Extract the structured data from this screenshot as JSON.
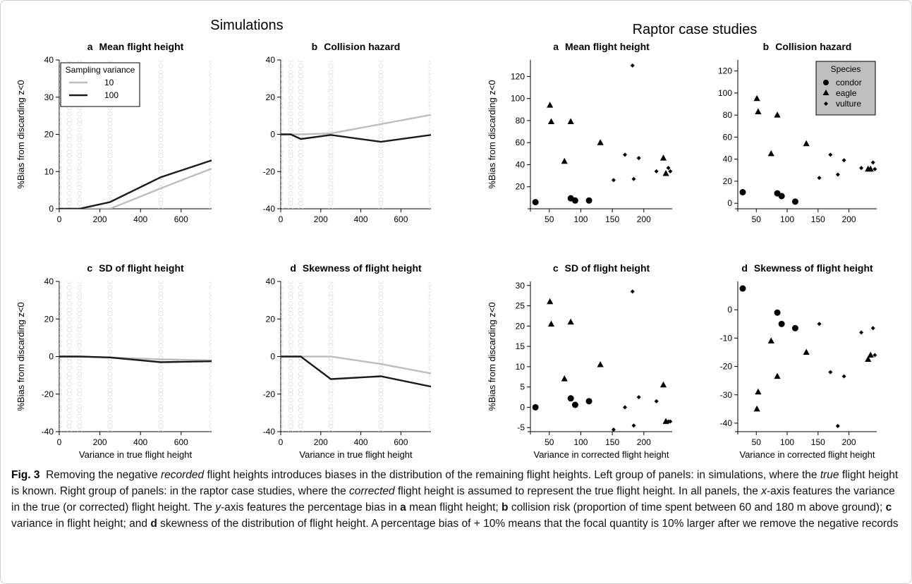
{
  "figure": {
    "group_titles": {
      "left": "Simulations",
      "right": "Raptor case studies"
    },
    "caption": {
      "label": "Fig. 3",
      "p1": "Removing the negative ",
      "p1_em": "recorded",
      "p2": " flight heights introduces biases in the distribution of the remaining flight heights. Left group of panels: in simulations, where the ",
      "p2_em": "true",
      "p3": " flight height is known. Right group of panels: in the raptor case studies, where the ",
      "p3_em": "corrected",
      "p4": " flight height is assumed to represent the true flight height. In all panels, the ",
      "p4_em": "x",
      "p5": "-axis features the variance in the true (or corrected) flight height. The ",
      "p5_em": "y",
      "p6": "-axis features the percentage bias in ",
      "b_a": "a",
      "p7": " mean flight height; ",
      "b_b": "b",
      "p8": " collision risk (proportion of time spent between 60 and 180 m above ground); ",
      "b_c": "c",
      "p9": " variance in flight height; and ",
      "b_d": "d",
      "p10": " skewness of the distribution of flight height. A percentage bias of + 10% means that the focal quantity is 10% larger after we remove the negative records"
    }
  },
  "chart_data": [
    {
      "id": "sim-a",
      "type": "line",
      "group": "Simulations",
      "letter": "a",
      "title": "Mean flight height",
      "ylabel": "%Bias from discarding z<0",
      "xlabel": "",
      "xlim": [
        0,
        750
      ],
      "ylim": [
        0,
        40
      ],
      "xticks": [
        0,
        200,
        400,
        600
      ],
      "yticks": [
        0,
        10,
        20,
        30,
        40
      ],
      "legend": {
        "title": "Sampling variance",
        "entries": [
          "10",
          "100"
        ],
        "position": "top-left"
      },
      "background_x": [
        0,
        50,
        100,
        250,
        500,
        750
      ],
      "series": [
        {
          "name": "10",
          "color": "#bdbdbd",
          "x": [
            0,
            50,
            100,
            250,
            500,
            750
          ],
          "y": [
            0,
            0,
            0,
            0,
            5.5,
            10.8
          ]
        },
        {
          "name": "100",
          "color": "#1a1a1a",
          "x": [
            0,
            50,
            100,
            250,
            500,
            750
          ],
          "y": [
            0,
            0,
            0,
            1.8,
            8.5,
            13
          ]
        }
      ]
    },
    {
      "id": "sim-b",
      "type": "line",
      "group": "Simulations",
      "letter": "b",
      "title": "Collision hazard",
      "ylabel": "",
      "xlabel": "",
      "xlim": [
        0,
        750
      ],
      "ylim": [
        -40,
        40
      ],
      "xticks": [
        0,
        200,
        400,
        600
      ],
      "yticks": [
        -40,
        -20,
        0,
        20,
        40
      ],
      "background_x": [
        0,
        50,
        100,
        250,
        500,
        750
      ],
      "series": [
        {
          "name": "10",
          "color": "#bdbdbd",
          "x": [
            0,
            50,
            100,
            250,
            500,
            750
          ],
          "y": [
            0,
            0,
            0,
            0.5,
            5.5,
            10.5
          ]
        },
        {
          "name": "100",
          "color": "#1a1a1a",
          "x": [
            0,
            50,
            100,
            250,
            500,
            750
          ],
          "y": [
            0,
            0,
            -2.5,
            -0.3,
            -4,
            -0.3
          ]
        }
      ]
    },
    {
      "id": "sim-c",
      "type": "line",
      "group": "Simulations",
      "letter": "c",
      "title": "SD of flight height",
      "ylabel": "%Bias from discarding z<0",
      "xlabel": "Variance in true flight height",
      "xlim": [
        0,
        750
      ],
      "ylim": [
        -40,
        40
      ],
      "xticks": [
        0,
        200,
        400,
        600
      ],
      "yticks": [
        -40,
        -20,
        0,
        20,
        40
      ],
      "background_x": [
        0,
        50,
        100,
        250,
        500,
        750
      ],
      "series": [
        {
          "name": "10",
          "color": "#bdbdbd",
          "x": [
            0,
            50,
            100,
            250,
            500,
            750
          ],
          "y": [
            0,
            0,
            0,
            -0.5,
            -1.5,
            -2
          ]
        },
        {
          "name": "100",
          "color": "#1a1a1a",
          "x": [
            0,
            50,
            100,
            250,
            500,
            750
          ],
          "y": [
            0,
            0,
            0,
            -0.5,
            -3,
            -2.5
          ]
        }
      ]
    },
    {
      "id": "sim-d",
      "type": "line",
      "group": "Simulations",
      "letter": "d",
      "title": "Skewness of flight height",
      "ylabel": "",
      "xlabel": "Variance in true flight height",
      "xlim": [
        0,
        750
      ],
      "ylim": [
        -40,
        40
      ],
      "xticks": [
        0,
        200,
        400,
        600
      ],
      "yticks": [
        -40,
        -20,
        0,
        20,
        40
      ],
      "background_x": [
        0,
        50,
        100,
        250,
        500,
        750
      ],
      "series": [
        {
          "name": "10",
          "color": "#bdbdbd",
          "x": [
            0,
            50,
            100,
            250,
            500,
            750
          ],
          "y": [
            0,
            0,
            0,
            0,
            -4,
            -9
          ]
        },
        {
          "name": "100",
          "color": "#1a1a1a",
          "x": [
            0,
            50,
            100,
            250,
            500,
            750
          ],
          "y": [
            0,
            0,
            0,
            -12,
            -10.5,
            -16
          ]
        }
      ]
    },
    {
      "id": "rap-a",
      "type": "scatter",
      "group": "Raptor case studies",
      "letter": "a",
      "title": "Mean flight height",
      "ylabel": "%Bias from discarding z<0",
      "xlabel": "",
      "xlim": [
        20,
        245
      ],
      "ylim": [
        0,
        135
      ],
      "xticks": [
        50,
        100,
        150,
        200
      ],
      "yticks": [
        20,
        40,
        60,
        80,
        100,
        120
      ],
      "series": [
        {
          "name": "condor",
          "marker": "circle",
          "x": [
            28,
            84,
            91,
            113
          ],
          "y": [
            6,
            9.5,
            7.5,
            7.5
          ]
        },
        {
          "name": "eagle",
          "marker": "triangle",
          "x": [
            51,
            53,
            74,
            84,
            131,
            231,
            235
          ],
          "y": [
            94,
            79,
            43,
            79,
            60,
            46,
            32
          ]
        },
        {
          "name": "vulture",
          "marker": "diamond",
          "x": [
            152,
            170,
            182,
            184,
            192,
            220,
            239,
            242
          ],
          "y": [
            26,
            49,
            130,
            27,
            46,
            34,
            37,
            34
          ]
        }
      ]
    },
    {
      "id": "rap-b",
      "type": "scatter",
      "group": "Raptor case studies",
      "letter": "b",
      "title": "Collision hazard",
      "ylabel": "",
      "xlabel": "",
      "xlim": [
        20,
        245
      ],
      "ylim": [
        -5,
        130
      ],
      "xticks": [
        50,
        100,
        150,
        200
      ],
      "yticks": [
        0,
        20,
        40,
        60,
        80,
        100,
        120
      ],
      "legend": {
        "title": "Species",
        "entries": [
          "condor",
          "eagle",
          "vulture"
        ],
        "position": "top-right"
      },
      "series": [
        {
          "name": "condor",
          "marker": "circle",
          "x": [
            28,
            84,
            91,
            113
          ],
          "y": [
            10,
            9,
            6.5,
            1.5
          ]
        },
        {
          "name": "eagle",
          "marker": "triangle",
          "x": [
            51,
            53,
            74,
            84,
            131,
            231,
            235
          ],
          "y": [
            95,
            83,
            45,
            80,
            54,
            31,
            31
          ]
        },
        {
          "name": "vulture",
          "marker": "diamond",
          "x": [
            152,
            170,
            182,
            192,
            220,
            239,
            242
          ],
          "y": [
            23,
            44,
            26,
            39,
            32,
            37,
            31
          ]
        }
      ]
    },
    {
      "id": "rap-c",
      "type": "scatter",
      "group": "Raptor case studies",
      "letter": "c",
      "title": "SD of flight height",
      "ylabel": "%Bias from discarding z<0",
      "xlabel": "Variance in corrected flight height",
      "xlim": [
        20,
        245
      ],
      "ylim": [
        -6,
        31
      ],
      "xticks": [
        50,
        100,
        150,
        200
      ],
      "yticks": [
        -5,
        0,
        5,
        10,
        15,
        20,
        25,
        30
      ],
      "series": [
        {
          "name": "condor",
          "marker": "circle",
          "x": [
            28,
            84,
            91,
            113
          ],
          "y": [
            0,
            2.2,
            0.6,
            1.5
          ]
        },
        {
          "name": "eagle",
          "marker": "triangle",
          "x": [
            51,
            53,
            74,
            84,
            131,
            231,
            235
          ],
          "y": [
            26,
            20.5,
            7,
            21,
            10.5,
            5.5,
            -3.5
          ]
        },
        {
          "name": "vulture",
          "marker": "diamond",
          "x": [
            152,
            170,
            182,
            184,
            192,
            220,
            239,
            242
          ],
          "y": [
            -5.5,
            0,
            28.5,
            -4.5,
            2.5,
            1.5,
            -3.5,
            -3.5
          ]
        }
      ]
    },
    {
      "id": "rap-d",
      "type": "scatter",
      "group": "Raptor case studies",
      "letter": "d",
      "title": "Skewness of flight height",
      "ylabel": "",
      "xlabel": "Variance in corrected flight height",
      "xlim": [
        20,
        245
      ],
      "ylim": [
        -43,
        10
      ],
      "xticks": [
        50,
        100,
        150,
        200
      ],
      "yticks": [
        -40,
        -30,
        -20,
        -10,
        0
      ],
      "series": [
        {
          "name": "condor",
          "marker": "circle",
          "x": [
            28,
            84,
            91,
            113
          ],
          "y": [
            7.5,
            -1,
            -5,
            -6.5
          ]
        },
        {
          "name": "eagle",
          "marker": "triangle",
          "x": [
            51,
            53,
            74,
            84,
            131,
            231,
            235
          ],
          "y": [
            -35,
            -29,
            -11,
            -23.5,
            -15,
            -17.5,
            -16
          ]
        },
        {
          "name": "vulture",
          "marker": "diamond",
          "x": [
            152,
            170,
            182,
            192,
            220,
            239,
            242
          ],
          "y": [
            -5,
            -22,
            -41,
            -23.5,
            -8,
            -6.5,
            -16
          ]
        }
      ]
    }
  ]
}
